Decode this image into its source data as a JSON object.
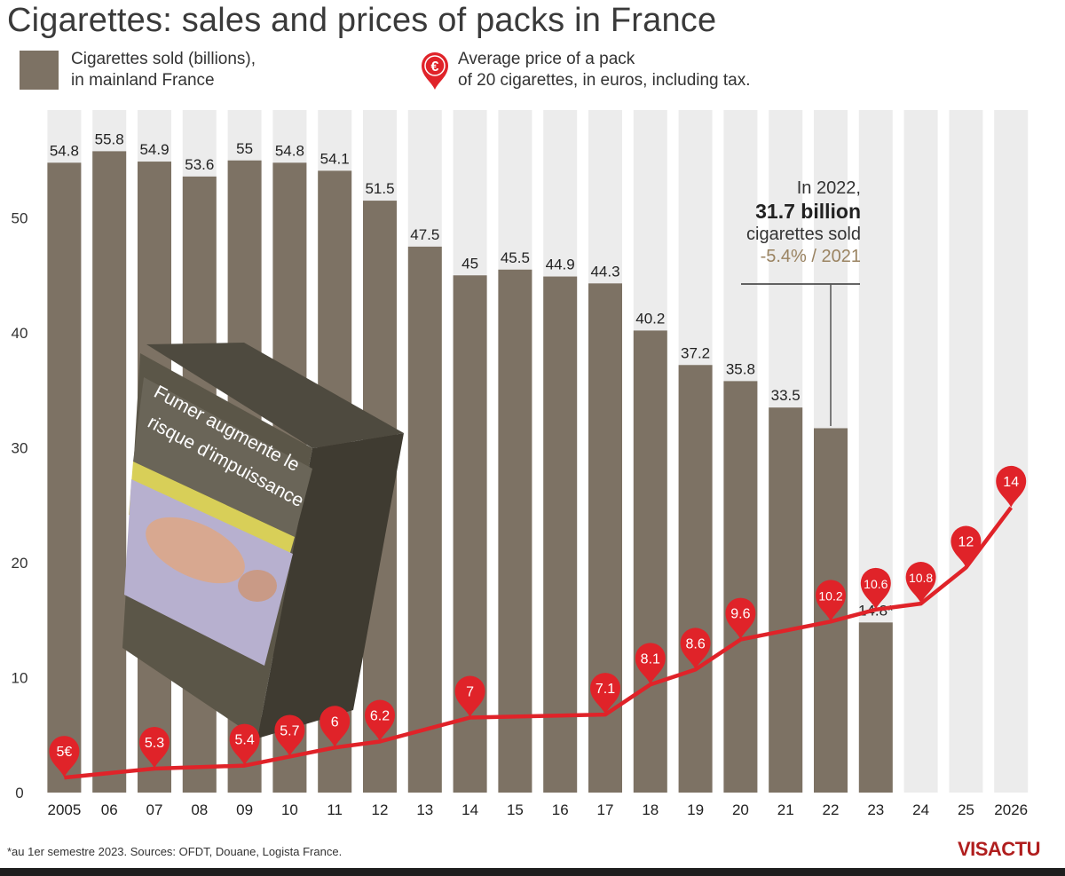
{
  "title": "Cigarettes: sales and prices of packs in France",
  "legend": {
    "bars_line1": "Cigarettes sold (billions),",
    "bars_line2": "in mainland France",
    "price_line1": "Average price of a pack",
    "price_line2": "of 20 cigarettes, in euros, including tax.",
    "price_symbol": "€"
  },
  "callout": {
    "line1": "In 2022,",
    "line2": "31.7 billion",
    "line3": "cigarettes sold",
    "line4": "-5.4% / 2021"
  },
  "footnote": "*au 1er semestre 2023. Sources: OFDT, Douane, Logista France.",
  "logo": "VISACTU",
  "colors": {
    "bar": "#7d7264",
    "column_bg": "#ececec",
    "price_line": "#d8262b",
    "price_marker": "#e02329"
  },
  "chart_data": {
    "type": "bar",
    "categories": [
      "2005",
      "06",
      "07",
      "08",
      "09",
      "10",
      "11",
      "12",
      "13",
      "14",
      "15",
      "16",
      "17",
      "18",
      "19",
      "20",
      "21",
      "22",
      "23",
      "24",
      "25",
      "2026"
    ],
    "series": [
      {
        "name": "Cigarettes sold (billions), in mainland France",
        "type": "bar",
        "values": [
          54.8,
          55.8,
          54.9,
          53.6,
          55,
          54.8,
          54.1,
          51.5,
          47.5,
          45,
          45.5,
          44.9,
          44.3,
          40.2,
          37.2,
          35.8,
          33.5,
          31.7,
          14.8,
          null,
          null,
          null
        ],
        "labels": [
          "54.8",
          "55.8",
          "54.9",
          "53.6",
          "55",
          "54.8",
          "54.1",
          "51.5",
          "47.5",
          "45",
          "45.5",
          "44.9",
          "44.3",
          "40.2",
          "37.2",
          "35.8",
          "33.5",
          "",
          "14.8*",
          "",
          "",
          ""
        ]
      },
      {
        "name": "Average price of a pack of 20 cigarettes, in euros, including tax.",
        "type": "line",
        "values": [
          5,
          null,
          5.3,
          null,
          5.4,
          5.7,
          6,
          6.2,
          null,
          7,
          null,
          null,
          7.1,
          8.1,
          8.6,
          9.6,
          null,
          10.2,
          10.6,
          10.8,
          12,
          14
        ],
        "labels": [
          "5€",
          "",
          "5.3",
          "",
          "5.4",
          "5.7",
          "6",
          "6.2",
          "",
          "7",
          "",
          "",
          "7.1",
          "8.1",
          "8.6",
          "9.6",
          "",
          "10.2",
          "10.6",
          "10.8",
          "12",
          "14"
        ]
      }
    ],
    "yticks": [
      "0",
      "10",
      "20",
      "30",
      "40",
      "50"
    ],
    "ylim": [
      0,
      57
    ],
    "grid": false
  }
}
